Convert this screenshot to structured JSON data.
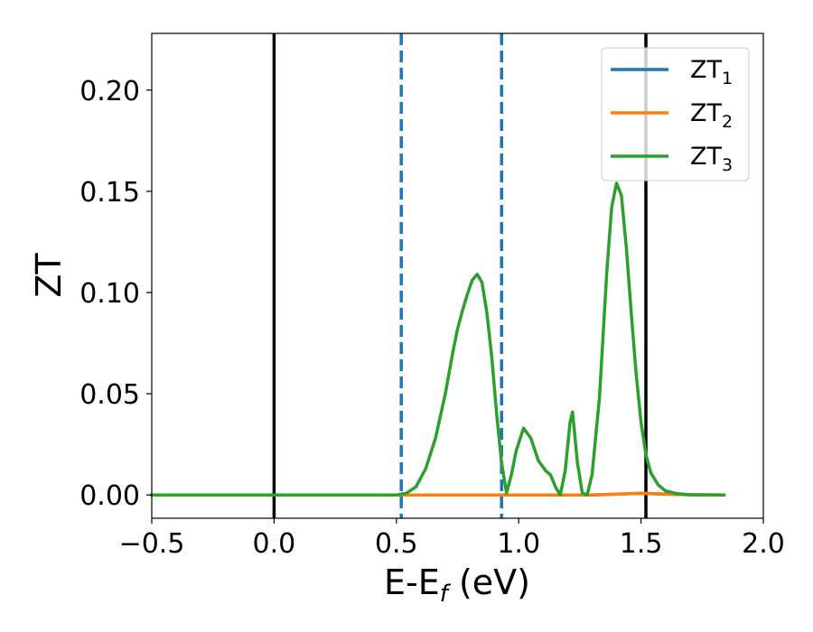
{
  "chart_data": {
    "type": "line",
    "title": "",
    "xlabel": {
      "base": "E-E",
      "sub": "f",
      "suffix": " (eV)"
    },
    "ylabel": "ZT",
    "xlim": [
      -0.5,
      2.0
    ],
    "ylim": [
      -0.0115,
      0.228
    ],
    "xticks": [
      -0.5,
      0.0,
      0.5,
      1.0,
      1.5,
      2.0
    ],
    "xtick_labels": [
      "−0.5",
      "0.0",
      "0.5",
      "1.0",
      "1.5",
      "2.0"
    ],
    "yticks": [
      0.0,
      0.05,
      0.1,
      0.15,
      0.2
    ],
    "ytick_labels": [
      "0.00",
      "0.05",
      "0.10",
      "0.15",
      "0.20"
    ],
    "grid": false,
    "legend_position": "top-right",
    "reference_lines": [
      {
        "x": 0.0,
        "style": "solid",
        "color": "#000000"
      },
      {
        "x": 1.52,
        "style": "solid",
        "color": "#000000"
      },
      {
        "x": 0.52,
        "style": "dashed",
        "color": "#1f77b4"
      },
      {
        "x": 0.93,
        "style": "dashed",
        "color": "#1f77b4"
      }
    ],
    "series": [
      {
        "name": "ZT",
        "sub": "1",
        "color": "#1f77b4",
        "x": [
          -0.5,
          0.5,
          1.0,
          1.3,
          1.42,
          1.5,
          1.6,
          1.7,
          1.84
        ],
        "y": [
          0.0,
          0.0,
          0.0,
          0.0,
          0.0005,
          0.0008,
          0.0004,
          0.0001,
          0.0
        ]
      },
      {
        "name": "ZT",
        "sub": "2",
        "color": "#ff7f0e",
        "x": [
          -0.5,
          0.5,
          1.0,
          1.3,
          1.42,
          1.5,
          1.6,
          1.7,
          1.84
        ],
        "y": [
          0.0,
          0.0,
          0.0,
          0.0,
          0.0005,
          0.0008,
          0.0004,
          0.0001,
          0.0
        ]
      },
      {
        "name": "ZT",
        "sub": "3",
        "color": "#2ca02c",
        "x": [
          -0.5,
          0.5,
          0.54,
          0.58,
          0.62,
          0.66,
          0.7,
          0.73,
          0.75,
          0.77,
          0.79,
          0.81,
          0.83,
          0.85,
          0.87,
          0.89,
          0.91,
          0.93,
          0.95,
          0.97,
          0.99,
          1.02,
          1.05,
          1.08,
          1.11,
          1.13,
          1.15,
          1.17,
          1.19,
          1.21,
          1.22,
          1.24,
          1.26,
          1.28,
          1.3,
          1.33,
          1.36,
          1.38,
          1.4,
          1.42,
          1.44,
          1.46,
          1.48,
          1.5,
          1.52,
          1.54,
          1.57,
          1.6,
          1.65,
          1.7,
          1.84
        ],
        "y": [
          0.0,
          0.0,
          0.0008,
          0.004,
          0.013,
          0.028,
          0.05,
          0.07,
          0.082,
          0.091,
          0.099,
          0.106,
          0.109,
          0.105,
          0.09,
          0.068,
          0.04,
          0.016,
          0.001,
          0.01,
          0.022,
          0.033,
          0.028,
          0.017,
          0.012,
          0.01,
          0.004,
          0.0,
          0.012,
          0.036,
          0.041,
          0.016,
          0.001,
          0.0,
          0.01,
          0.048,
          0.11,
          0.142,
          0.154,
          0.148,
          0.122,
          0.09,
          0.06,
          0.036,
          0.02,
          0.011,
          0.005,
          0.002,
          0.0006,
          0.0001,
          0.0
        ]
      }
    ]
  }
}
